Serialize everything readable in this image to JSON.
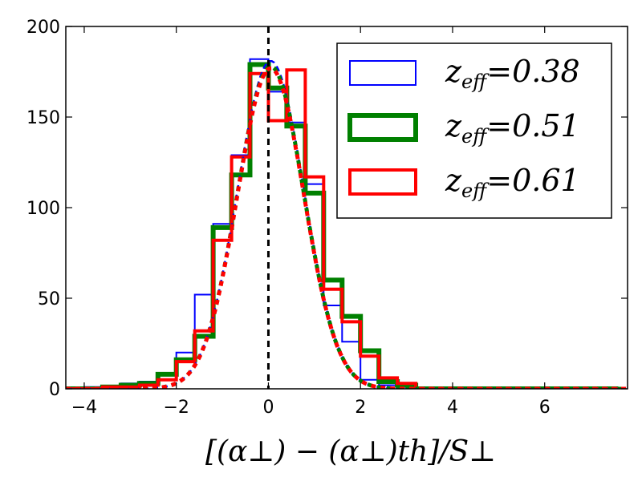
{
  "chart_data": {
    "type": "histogram",
    "xlabel": "[(α⊥) − (α⊥)th]/S⊥",
    "ylabel": "",
    "xlim": [
      -4.4,
      7.8
    ],
    "ylim": [
      0,
      200
    ],
    "xticks": [
      -4,
      -2,
      0,
      2,
      4,
      6
    ],
    "yticks": [
      0,
      50,
      100,
      150,
      200
    ],
    "xtick_labels": [
      "−4",
      "−2",
      "0",
      "2",
      "4",
      "6"
    ],
    "ytick_labels": [
      "0",
      "50",
      "100",
      "150",
      "200"
    ],
    "grid": false,
    "legend_position": "top-right",
    "reference_line": {
      "x": 0,
      "style": "dashed",
      "color": "#000000"
    },
    "bin_edges": [
      -4.4,
      -4.0,
      -3.6,
      -3.2,
      -2.8,
      -2.4,
      -2.0,
      -1.6,
      -1.2,
      -0.8,
      -0.4,
      0.0,
      0.4,
      0.8,
      1.2,
      1.6,
      2.0,
      2.4,
      2.8,
      3.2,
      3.6,
      4.0,
      4.4,
      4.8,
      5.2,
      5.6,
      6.0,
      6.4,
      6.8,
      7.2,
      7.6
    ],
    "series": [
      {
        "legend_base": "z",
        "legend_sub": "eff",
        "legend_value": "=0.38",
        "color": "#0000ff",
        "line_width": 2,
        "counts": [
          0,
          1,
          1,
          3,
          4,
          8,
          20,
          52,
          91,
          129,
          182,
          164,
          147,
          113,
          46,
          26,
          5,
          2,
          1,
          0,
          0,
          0,
          0,
          0,
          0,
          0,
          0,
          0,
          0,
          0
        ],
        "fit_curve": {
          "mean": 0.05,
          "sigma": 0.72,
          "peak": 181
        }
      },
      {
        "legend_base": "z",
        "legend_sub": "eff",
        "legend_value": "=0.51",
        "color": "#008000",
        "line_width": 6,
        "counts": [
          0,
          0,
          1,
          2,
          3,
          8,
          16,
          29,
          89,
          118,
          179,
          166,
          145,
          108,
          60,
          40,
          21,
          4,
          2,
          0,
          0,
          0,
          0,
          0,
          0,
          0,
          0,
          0,
          0,
          0
        ],
        "fit_curve": {
          "mean": 0.05,
          "sigma": 0.72,
          "peak": 178
        }
      },
      {
        "legend_base": "z",
        "legend_sub": "eff",
        "legend_value": "=0.61",
        "color": "#ff0000",
        "line_width": 4,
        "counts": [
          0,
          0,
          1,
          1,
          2,
          5,
          15,
          32,
          82,
          128,
          174,
          148,
          176,
          117,
          55,
          37,
          18,
          6,
          3,
          0,
          0,
          0,
          0,
          0,
          0,
          0,
          0,
          0,
          0,
          0
        ],
        "fit_curve": {
          "mean": 0.05,
          "sigma": 0.72,
          "peak": 177
        }
      }
    ]
  }
}
